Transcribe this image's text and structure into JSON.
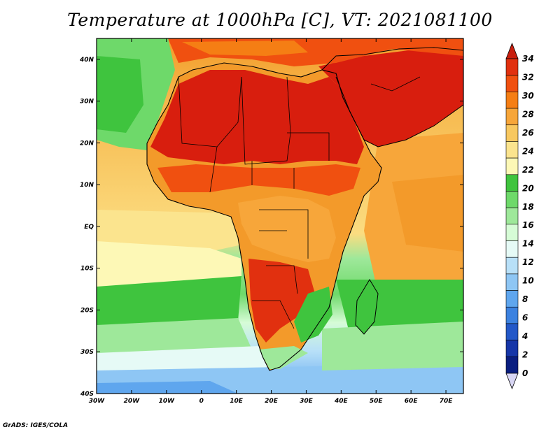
{
  "title": "Temperature at 1000hPa [C], VT: 2021081100",
  "credit": "GrADS: IGES/COLA",
  "map": {
    "lon_ticks": [
      "30W",
      "20W",
      "10W",
      "0",
      "10E",
      "20E",
      "30E",
      "40E",
      "50E",
      "60E",
      "70E"
    ],
    "lat_ticks": [
      "40N",
      "30N",
      "20N",
      "10N",
      "EQ",
      "10S",
      "20S",
      "30S",
      "40S"
    ],
    "lon_range": [
      -30,
      75
    ],
    "lat_range": [
      -40,
      45
    ]
  },
  "colorbar": {
    "labels": [
      "34",
      "32",
      "30",
      "28",
      "26",
      "24",
      "22",
      "20",
      "18",
      "16",
      "14",
      "12",
      "10",
      "8",
      "6",
      "4",
      "2",
      "0"
    ],
    "colors": [
      "#c81e0e",
      "#e1300f",
      "#f05010",
      "#f57e14",
      "#f7a63a",
      "#f8c860",
      "#fbe48e",
      "#fdf8b6",
      "#3fc43e",
      "#6ed96a",
      "#9ee89a",
      "#d6fcd6",
      "#e6faf6",
      "#b8e0f8",
      "#8ec6f4",
      "#5fa6ee",
      "#3c82e0",
      "#2358c8",
      "#1636a8",
      "#0a1e80",
      "#d8d6f4"
    ]
  }
}
